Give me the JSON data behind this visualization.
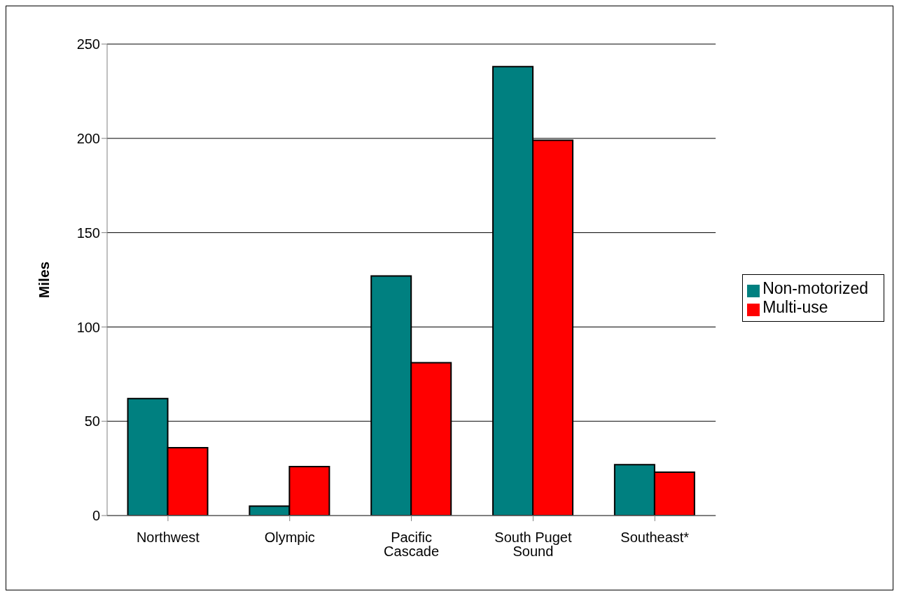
{
  "chart_data": {
    "type": "bar",
    "ylabel": "Miles",
    "categories": [
      "Northwest",
      "Olympic",
      "Pacific Cascade",
      "South Puget Sound",
      "Southeast*"
    ],
    "series": [
      {
        "name": "Non-motorized",
        "color": "#008080",
        "values": [
          62,
          5,
          127,
          238,
          27
        ]
      },
      {
        "name": "Multi-use",
        "color": "#ff0000",
        "values": [
          36,
          26,
          81,
          199,
          23
        ]
      }
    ],
    "ylim": [
      0,
      250
    ],
    "yticks": [
      0,
      50,
      100,
      150,
      200,
      250
    ],
    "grid": "y",
    "legend": "right"
  }
}
